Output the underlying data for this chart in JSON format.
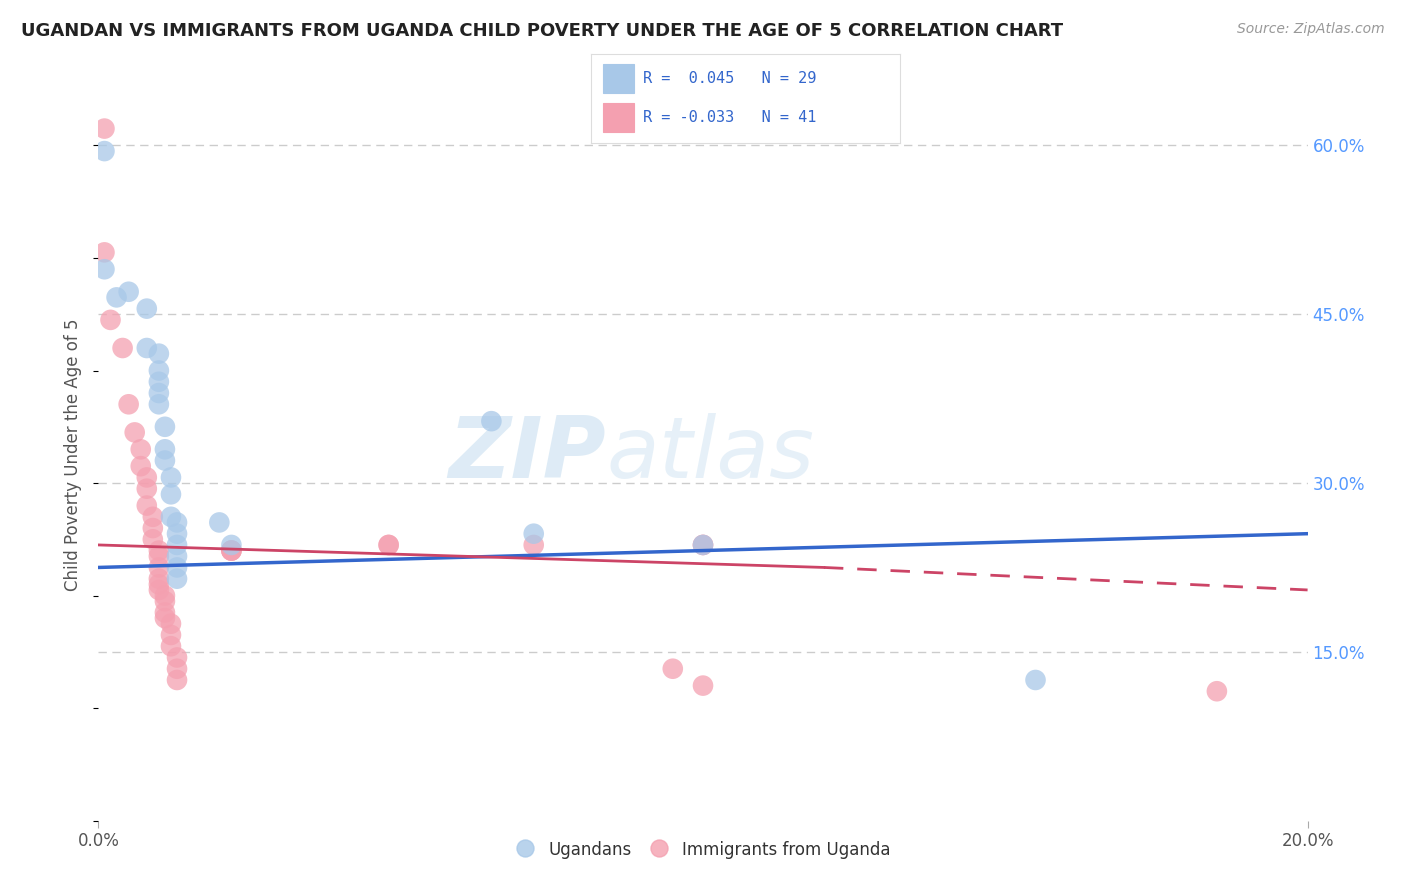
{
  "title": "UGANDAN VS IMMIGRANTS FROM UGANDA CHILD POVERTY UNDER THE AGE OF 5 CORRELATION CHART",
  "source": "Source: ZipAtlas.com",
  "ylabel": "Child Poverty Under the Age of 5",
  "legend_label1": "Ugandans",
  "legend_label2": "Immigrants from Uganda",
  "R1": 0.045,
  "N1": 29,
  "R2": -0.033,
  "N2": 41,
  "watermark_zip": "ZIP",
  "watermark_atlas": "atlas",
  "ytick_labels": [
    "15.0%",
    "30.0%",
    "45.0%",
    "60.0%"
  ],
  "ytick_values": [
    0.15,
    0.3,
    0.45,
    0.6
  ],
  "xlim": [
    0.0,
    0.2
  ],
  "ylim": [
    0.0,
    0.65
  ],
  "blue_scatter_color": "#a8c8e8",
  "pink_scatter_color": "#f4a0b0",
  "blue_line_color": "#3366cc",
  "pink_line_color": "#cc4466",
  "grid_color": "#cccccc",
  "bg_color": "#ffffff",
  "blue_scatter": [
    [
      0.001,
      0.595
    ],
    [
      0.001,
      0.49
    ],
    [
      0.003,
      0.465
    ],
    [
      0.005,
      0.47
    ],
    [
      0.008,
      0.455
    ],
    [
      0.008,
      0.42
    ],
    [
      0.01,
      0.415
    ],
    [
      0.01,
      0.4
    ],
    [
      0.01,
      0.39
    ],
    [
      0.01,
      0.38
    ],
    [
      0.01,
      0.37
    ],
    [
      0.011,
      0.35
    ],
    [
      0.011,
      0.33
    ],
    [
      0.011,
      0.32
    ],
    [
      0.012,
      0.305
    ],
    [
      0.012,
      0.29
    ],
    [
      0.012,
      0.27
    ],
    [
      0.013,
      0.265
    ],
    [
      0.013,
      0.255
    ],
    [
      0.013,
      0.245
    ],
    [
      0.013,
      0.235
    ],
    [
      0.013,
      0.225
    ],
    [
      0.013,
      0.215
    ],
    [
      0.02,
      0.265
    ],
    [
      0.022,
      0.245
    ],
    [
      0.065,
      0.355
    ],
    [
      0.072,
      0.255
    ],
    [
      0.1,
      0.245
    ],
    [
      0.155,
      0.125
    ]
  ],
  "pink_scatter": [
    [
      0.001,
      0.615
    ],
    [
      0.001,
      0.505
    ],
    [
      0.002,
      0.445
    ],
    [
      0.004,
      0.42
    ],
    [
      0.005,
      0.37
    ],
    [
      0.006,
      0.345
    ],
    [
      0.007,
      0.33
    ],
    [
      0.007,
      0.315
    ],
    [
      0.008,
      0.305
    ],
    [
      0.008,
      0.295
    ],
    [
      0.008,
      0.28
    ],
    [
      0.009,
      0.27
    ],
    [
      0.009,
      0.26
    ],
    [
      0.009,
      0.25
    ],
    [
      0.01,
      0.24
    ],
    [
      0.01,
      0.235
    ],
    [
      0.01,
      0.225
    ],
    [
      0.01,
      0.215
    ],
    [
      0.01,
      0.21
    ],
    [
      0.01,
      0.205
    ],
    [
      0.011,
      0.2
    ],
    [
      0.011,
      0.195
    ],
    [
      0.011,
      0.185
    ],
    [
      0.011,
      0.18
    ],
    [
      0.012,
      0.175
    ],
    [
      0.012,
      0.165
    ],
    [
      0.012,
      0.155
    ],
    [
      0.013,
      0.145
    ],
    [
      0.013,
      0.135
    ],
    [
      0.013,
      0.125
    ],
    [
      0.022,
      0.24
    ],
    [
      0.022,
      0.24
    ],
    [
      0.022,
      0.24
    ],
    [
      0.048,
      0.245
    ],
    [
      0.048,
      0.245
    ],
    [
      0.072,
      0.245
    ],
    [
      0.095,
      0.135
    ],
    [
      0.1,
      0.245
    ],
    [
      0.1,
      0.245
    ],
    [
      0.1,
      0.12
    ],
    [
      0.185,
      0.115
    ]
  ],
  "blue_line": [
    [
      0.0,
      0.225
    ],
    [
      0.2,
      0.255
    ]
  ],
  "pink_line_solid": [
    [
      0.0,
      0.245
    ],
    [
      0.12,
      0.225
    ]
  ],
  "pink_line_dash": [
    [
      0.12,
      0.225
    ],
    [
      0.2,
      0.205
    ]
  ]
}
